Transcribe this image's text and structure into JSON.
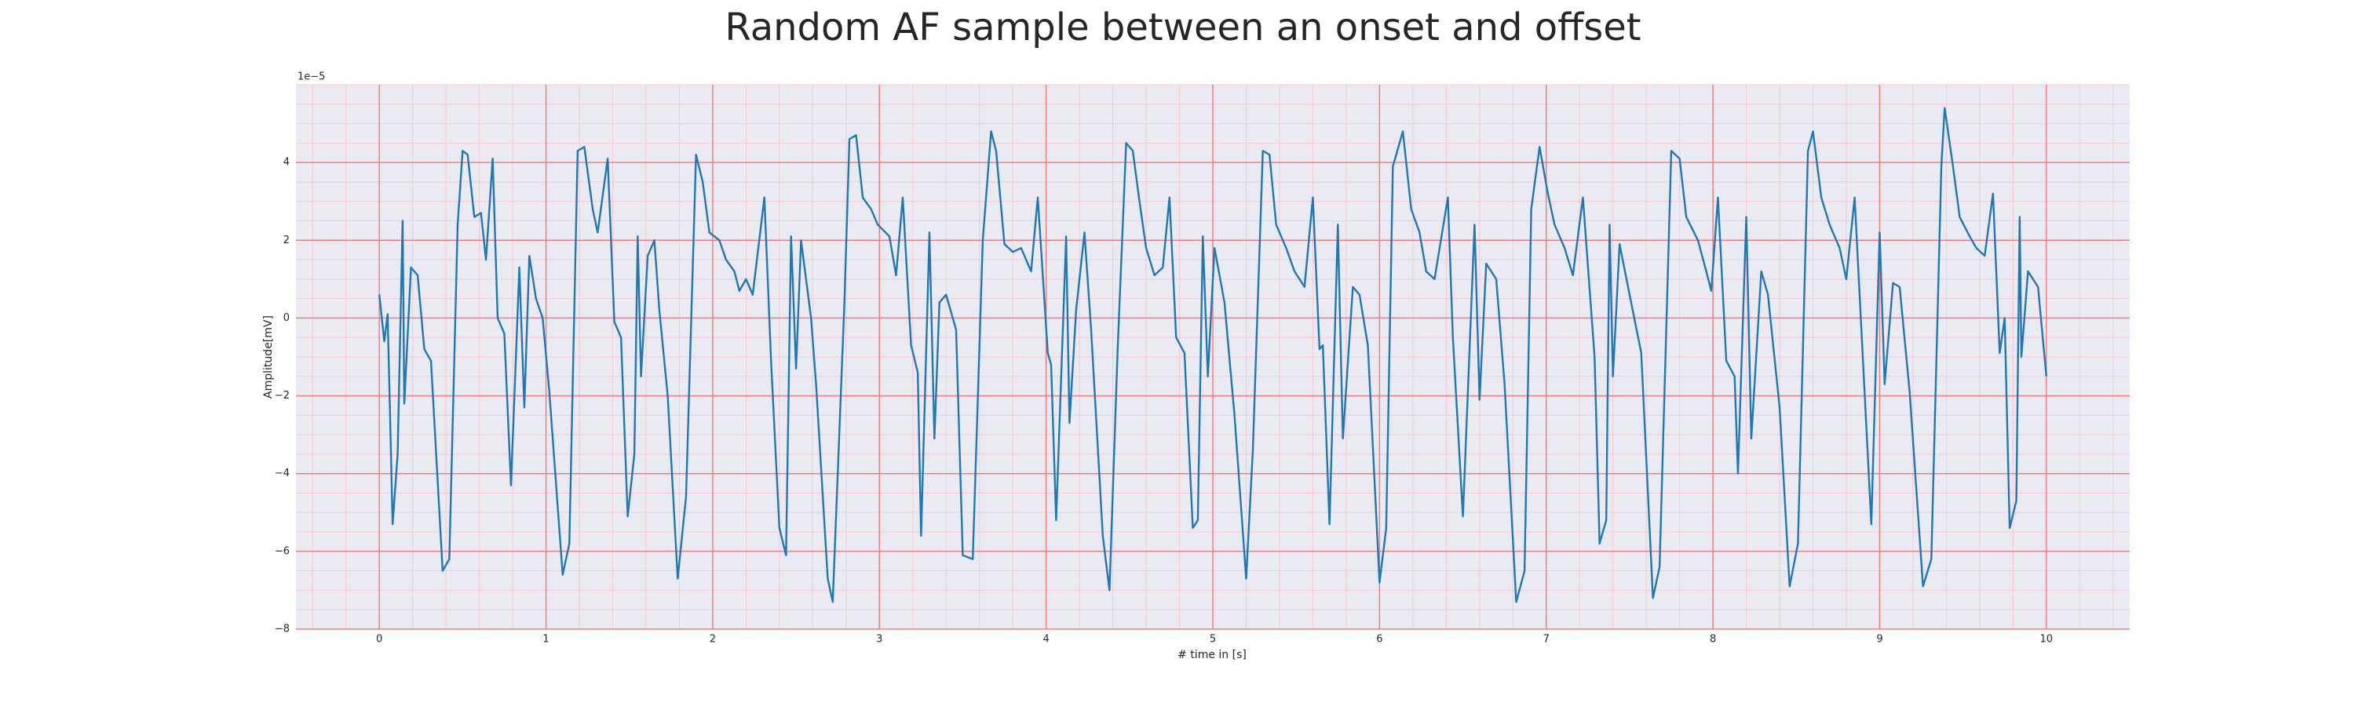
{
  "chart_data": {
    "type": "line",
    "title": "Random AF sample between an onset and offset",
    "xlabel": "# time in [s]",
    "ylabel": "Amplitude[mV]",
    "yoffset_label": "1e−5",
    "color": "#1f77b4",
    "background": "#eaeaf2",
    "grid": true,
    "grid_color": "#f08080",
    "minor_grid": true,
    "minor_grid_color": "#f7c8cf",
    "xminor_step": 0.2,
    "yminor_step": 0.5,
    "xlim": [
      -0.5,
      10.5
    ],
    "ylim": [
      -8,
      6
    ],
    "xticks": [
      0,
      1,
      2,
      3,
      4,
      5,
      6,
      7,
      8,
      9,
      10
    ],
    "yticks": [
      {
        "value": -8,
        "label": "−8"
      },
      {
        "value": -6,
        "label": "−6"
      },
      {
        "value": -4,
        "label": "−4"
      },
      {
        "value": -2,
        "label": "−2"
      },
      0,
      2,
      4
    ],
    "x": [
      0,
      0.03,
      0.05,
      0.08,
      0.11,
      0.14,
      0.15,
      0.19,
      0.23,
      0.27,
      0.31,
      0.38,
      0.42,
      0.47,
      0.5,
      0.53,
      0.57,
      0.61,
      0.64,
      0.68,
      0.71,
      0.75,
      0.79,
      0.84,
      0.87,
      0.9,
      0.94,
      0.98,
      1.02,
      1.1,
      1.14,
      1.19,
      1.23,
      1.28,
      1.31,
      1.37,
      1.41,
      1.45,
      1.49,
      1.53,
      1.55,
      1.57,
      1.61,
      1.65,
      1.68,
      1.73,
      1.79,
      1.84,
      1.9,
      1.94,
      1.98,
      2.04,
      2.08,
      2.13,
      2.16,
      2.2,
      2.24,
      2.31,
      2.35,
      2.4,
      2.44,
      2.47,
      2.5,
      2.53,
      2.59,
      2.62,
      2.69,
      2.72,
      2.79,
      2.82,
      2.86,
      2.9,
      2.95,
      2.99,
      3.06,
      3.1,
      3.14,
      3.19,
      3.23,
      3.25,
      3.3,
      3.33,
      3.36,
      3.4,
      3.46,
      3.5,
      3.56,
      3.62,
      3.67,
      3.7,
      3.75,
      3.8,
      3.85,
      3.91,
      3.95,
      4.01,
      4.03,
      4.06,
      4.12,
      4.14,
      4.18,
      4.23,
      4.27,
      4.34,
      4.38,
      4.43,
      4.48,
      4.52,
      4.56,
      4.6,
      4.65,
      4.7,
      4.74,
      4.78,
      4.83,
      4.88,
      4.91,
      4.94,
      4.97,
      5.01,
      5.07,
      5.13,
      5.2,
      5.24,
      5.3,
      5.34,
      5.38,
      5.44,
      5.49,
      5.55,
      5.6,
      5.64,
      5.66,
      5.7,
      5.75,
      5.78,
      5.84,
      5.88,
      5.93,
      6,
      6.04,
      6.08,
      6.14,
      6.19,
      6.24,
      6.28,
      6.33,
      6.41,
      6.44,
      6.5,
      6.57,
      6.6,
      6.64,
      6.7,
      6.75,
      6.82,
      6.87,
      6.91,
      6.96,
      7.01,
      7.05,
      7.11,
      7.16,
      7.22,
      7.29,
      7.32,
      7.36,
      7.38,
      7.4,
      7.44,
      7.5,
      7.57,
      7.64,
      7.68,
      7.75,
      7.8,
      7.84,
      7.91,
      7.96,
      7.99,
      8.03,
      8.08,
      8.13,
      8.15,
      8.2,
      8.23,
      8.29,
      8.33,
      8.4,
      8.46,
      8.51,
      8.57,
      8.6,
      8.65,
      8.7,
      8.76,
      8.8,
      8.85,
      8.9,
      8.95,
      9,
      9.03,
      9.08,
      9.12,
      9.18,
      9.26,
      9.31,
      9.37,
      9.39,
      9.44,
      9.48,
      9.54,
      9.58,
      9.63,
      9.68,
      9.72,
      9.75,
      9.78,
      9.82,
      9.84,
      9.85,
      9.89,
      9.95,
      10
    ],
    "values": [
      0.6,
      -0.6,
      0.1,
      -5.3,
      -3.5,
      2.5,
      -2.2,
      1.3,
      1.1,
      -0.8,
      -1.1,
      -6.5,
      -6.2,
      2.4,
      4.3,
      4.2,
      2.6,
      2.7,
      1.5,
      4.1,
      0,
      -0.4,
      -4.3,
      1.3,
      -2.3,
      1.6,
      0.5,
      0,
      -1.9,
      -6.6,
      -5.8,
      4.3,
      4.4,
      2.8,
      2.2,
      4.1,
      -0.1,
      -0.5,
      -5.1,
      -3.5,
      2.1,
      -1.5,
      1.6,
      2,
      0.2,
      -2,
      -6.7,
      -4.6,
      4.2,
      3.5,
      2.2,
      2,
      1.5,
      1.2,
      0.7,
      1,
      0.6,
      3.1,
      -1.1,
      -5.4,
      -6.1,
      2.1,
      -1.3,
      2,
      0,
      -1.7,
      -6.7,
      -7.3,
      0.4,
      4.6,
      4.7,
      3.1,
      2.8,
      2.4,
      2.1,
      1.1,
      3.1,
      -0.7,
      -1.4,
      -5.6,
      2.2,
      -3.1,
      0.4,
      0.6,
      -0.3,
      -6.1,
      -6.2,
      2,
      4.8,
      4.3,
      1.9,
      1.7,
      1.8,
      1.2,
      3.1,
      -0.9,
      -1.2,
      -5.2,
      2.1,
      -2.7,
      0.2,
      2.2,
      -0.3,
      -5.6,
      -7,
      -0.7,
      4.5,
      4.3,
      3,
      1.8,
      1.1,
      1.3,
      3.1,
      -0.5,
      -0.9,
      -5.4,
      -5.2,
      2.1,
      -1.5,
      1.8,
      0.4,
      -2.5,
      -6.7,
      -3.4,
      4.3,
      4.2,
      2.4,
      1.8,
      1.2,
      0.8,
      3.1,
      -0.8,
      -0.7,
      -5.3,
      2.4,
      -3.1,
      0.8,
      0.6,
      -0.7,
      -6.8,
      -5.4,
      3.9,
      4.8,
      2.8,
      2.2,
      1.2,
      1,
      3.1,
      -0.5,
      -5.1,
      2.4,
      -2.1,
      1.4,
      1,
      -1.7,
      -7.3,
      -6.5,
      2.8,
      4.4,
      3.2,
      2.4,
      1.8,
      1.1,
      3.1,
      -1,
      -5.8,
      -5.2,
      2.4,
      -1.5,
      1.9,
      0.6,
      -0.9,
      -7.2,
      -6.4,
      4.3,
      4.1,
      2.6,
      2,
      1.2,
      0.7,
      3.1,
      -1.1,
      -1.5,
      -4,
      2.6,
      -3.1,
      1.2,
      0.6,
      -2.3,
      -6.9,
      -5.8,
      4.3,
      4.8,
      3.1,
      2.4,
      1.8,
      1,
      3.1,
      -1.1,
      -5.3,
      2.2,
      -1.7,
      0.9,
      0.8,
      -1.9,
      -6.9,
      -6.2,
      3.9,
      5.4,
      3.9,
      2.6,
      2.1,
      1.8,
      1.6,
      3.2,
      -0.9,
      0,
      -5.4,
      -4.7,
      2.6,
      -1,
      1.2,
      0.8,
      -1.5
    ]
  }
}
